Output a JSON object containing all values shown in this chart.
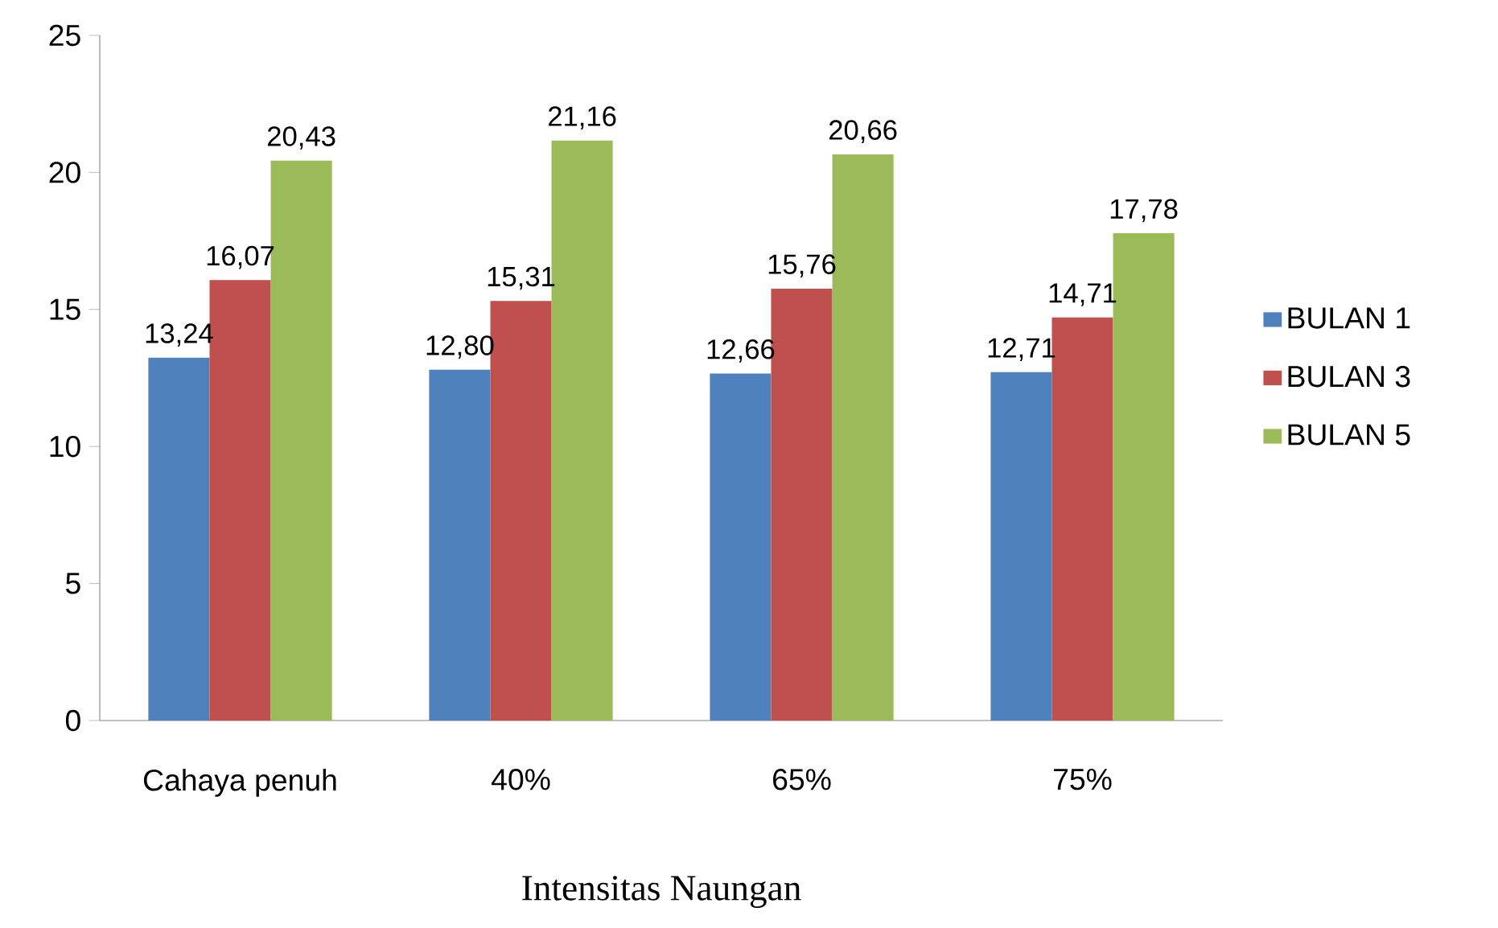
{
  "chart_data": {
    "type": "bar",
    "xlabel": "Intensitas Naungan",
    "categories": [
      "Cahaya penuh",
      "40%",
      "65%",
      "75%"
    ],
    "series": [
      {
        "name": "BULAN 1",
        "color": "#4f81bd",
        "values": [
          13.24,
          12.8,
          12.66,
          12.71
        ],
        "value_labels": [
          "13,24",
          "12,80",
          "12,66",
          "12,71"
        ]
      },
      {
        "name": "BULAN 3",
        "color": "#c0504d",
        "values": [
          16.07,
          15.31,
          15.76,
          14.71
        ],
        "value_labels": [
          "16,07",
          "15,31",
          "15,76",
          "14,71"
        ]
      },
      {
        "name": "BULAN 5",
        "color": "#9bbb59",
        "values": [
          20.43,
          21.16,
          20.66,
          17.78
        ],
        "value_labels": [
          "20,43",
          "21,16",
          "20,66",
          "17,78"
        ]
      }
    ],
    "ylim": [
      0,
      25
    ],
    "yticks": [
      0,
      5,
      10,
      15,
      20,
      25
    ],
    "grid": false,
    "legend": "right"
  }
}
